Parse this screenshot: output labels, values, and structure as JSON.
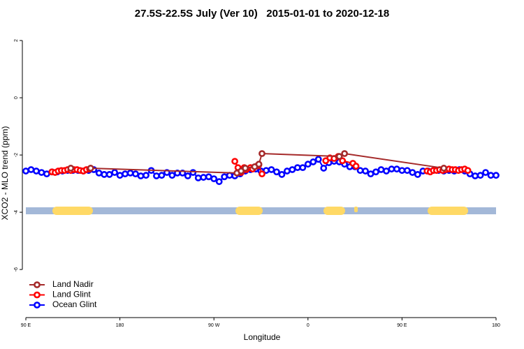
{
  "chart_data": {
    "type": "line",
    "title": "27.5S-22.5S July (Ver 10)   2015-01-01 to 2020-12-18",
    "x_label": "Longitude",
    "y_label": "XCO2 - MLO trend (ppm)",
    "xlim": [
      90,
      540
    ],
    "ylim": [
      -7.68,
      2.44
    ],
    "xticks": [
      {
        "value": 90,
        "label": "90 E"
      },
      180,
      {
        "value": 270,
        "label": "90 W"
      },
      {
        "value": 360,
        "label": "0"
      },
      {
        "value": 450,
        "label": "90 E"
      },
      {
        "value": 540,
        "label": "180"
      }
    ],
    "yticks": [
      2,
      0,
      -2,
      -4,
      -6
    ],
    "legend": "bottom-left",
    "series": [
      {
        "name": "Land Nadir",
        "color": "#a52a2a",
        "x": [
          133,
          136,
          152,
          292,
          296,
          300,
          309,
          313,
          316,
          390,
          395,
          490
        ],
        "values": [
          -2.46,
          null,
          -2.46,
          -2.63,
          -2.56,
          -2.46,
          -2.41,
          -2.32,
          -1.95,
          -2.05,
          -1.95,
          -2.46
        ]
      },
      {
        "name": "Land Glint",
        "color": "#ff0000",
        "x": [
          115,
          118,
          121,
          124,
          127,
          130,
          133,
          136,
          139,
          142,
          145,
          148,
          151,
          200,
          290,
          293,
          296,
          299,
          301,
          305,
          307,
          311,
          313,
          316,
          340,
          377,
          381,
          385,
          389,
          393,
          403,
          406,
          450,
          474,
          477,
          480,
          483,
          486,
          489,
          492,
          495,
          498,
          501,
          504,
          507,
          510,
          513
        ],
        "values": [
          -2.59,
          -2.61,
          -2.56,
          -2.54,
          -2.54,
          -2.51,
          -2.54,
          -2.51,
          -2.51,
          -2.54,
          -2.56,
          -2.51,
          -2.49,
          null,
          -2.22,
          -2.44,
          -2.61,
          -2.44,
          -2.51,
          -2.44,
          -2.49,
          -2.39,
          -2.34,
          -2.66,
          null,
          -2.2,
          -2.1,
          -2.12,
          -2.05,
          -2.2,
          -2.29,
          -2.39,
          null,
          -2.56,
          -2.59,
          -2.54,
          -2.54,
          -2.51,
          -2.54,
          -2.51,
          -2.49,
          -2.51,
          -2.51,
          -2.54,
          -2.51,
          -2.49,
          -2.54
        ]
      },
      {
        "name": "Ocean Glint",
        "color": "#0000ff",
        "x": [
          90,
          95,
          100,
          105,
          110,
          115,
          120,
          125,
          130,
          135,
          140,
          145,
          150,
          155,
          160,
          165,
          170,
          175,
          180,
          185,
          190,
          195,
          200,
          205,
          210,
          215,
          220,
          225,
          230,
          235,
          240,
          245,
          250,
          255,
          260,
          265,
          270,
          275,
          280,
          285,
          290,
          295,
          300,
          305,
          310,
          315,
          320,
          325,
          330,
          335,
          340,
          345,
          350,
          355,
          360,
          365,
          370,
          375,
          380,
          385,
          390,
          395,
          400,
          405,
          410,
          415,
          420,
          425,
          430,
          435,
          440,
          445,
          450,
          455,
          460,
          465,
          470,
          475,
          480,
          485,
          490,
          495,
          500,
          505,
          510,
          515,
          520,
          525,
          530,
          535,
          540
        ],
        "values": [
          -2.56,
          -2.51,
          -2.56,
          -2.61,
          -2.66,
          -2.59,
          -2.59,
          -2.56,
          -2.54,
          -2.54,
          -2.54,
          -2.56,
          -2.54,
          -2.51,
          -2.63,
          -2.68,
          -2.68,
          -2.61,
          -2.71,
          -2.66,
          -2.63,
          -2.66,
          -2.73,
          -2.71,
          -2.54,
          -2.73,
          -2.71,
          -2.61,
          -2.71,
          -2.63,
          -2.63,
          -2.73,
          -2.61,
          -2.8,
          -2.78,
          -2.76,
          -2.83,
          -2.93,
          -2.76,
          -2.71,
          -2.73,
          -2.66,
          -2.56,
          -2.51,
          -2.49,
          -2.56,
          -2.54,
          -2.51,
          -2.59,
          -2.68,
          -2.56,
          -2.51,
          -2.44,
          -2.44,
          -2.32,
          -2.24,
          -2.15,
          -2.46,
          -2.27,
          -2.22,
          -2.24,
          -2.32,
          -2.41,
          -2.41,
          -2.54,
          -2.56,
          -2.66,
          -2.59,
          -2.51,
          -2.56,
          -2.49,
          -2.49,
          -2.54,
          -2.54,
          -2.61,
          -2.68,
          -2.56,
          -2.56,
          -2.54,
          -2.54,
          -2.56,
          -2.54,
          -2.56,
          -2.51,
          -2.56,
          -2.66,
          -2.73,
          -2.71,
          -2.61,
          -2.71,
          -2.71
        ]
      }
    ]
  }
}
